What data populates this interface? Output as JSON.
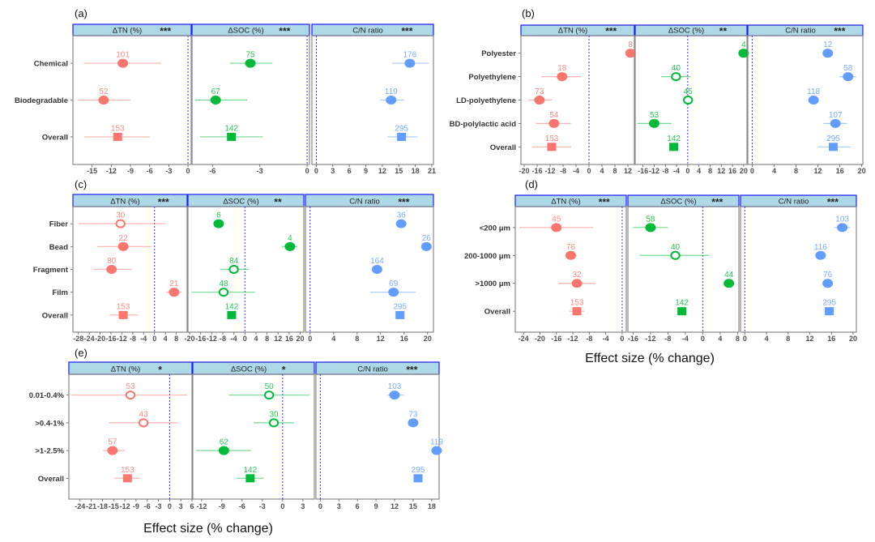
{
  "colors": {
    "tn": "#F8766D",
    "soc": "#00BA38",
    "cn": "#619CFF",
    "strip_fill": "#ADD8E6",
    "strip_border": "#1A1AFF",
    "zero_line": "#3333FF",
    "frame": "#888888",
    "tick_text": "#4D4D4D",
    "ylabel_text": "#333333"
  },
  "shared_xlabels": [
    "Effect size (% change)",
    "Effect size (% change)"
  ],
  "chart_data": [
    {
      "id": "a",
      "type": "forest",
      "panel_label": "(a)",
      "categories": [
        "Chemical",
        "Biodegradable",
        "Overall"
      ],
      "facets": [
        {
          "name": "ΔTN (%)",
          "sig": "***",
          "color_key": "tn",
          "xlim": [
            -18,
            0.5
          ],
          "ticks": [
            -15,
            -12,
            -9,
            -6,
            -3,
            0
          ],
          "points": [
            {
              "est": -10.2,
              "lo": -16.3,
              "hi": -4.2,
              "n": "101",
              "shape": "circle",
              "filled": true
            },
            {
              "est": -13.2,
              "lo": -17.2,
              "hi": -9.0,
              "n": "52",
              "shape": "circle",
              "filled": true
            },
            {
              "est": -11.0,
              "lo": -16.2,
              "hi": -6.0,
              "n": "153",
              "shape": "square",
              "filled": true
            }
          ]
        },
        {
          "name": "ΔSOC (%)",
          "sig": "***",
          "color_key": "soc",
          "xlim": [
            -7.3,
            0.15
          ],
          "ticks": [
            -6,
            -3,
            0
          ],
          "points": [
            {
              "est": -3.6,
              "lo": -4.9,
              "hi": -2.2,
              "n": "75",
              "shape": "circle",
              "filled": true
            },
            {
              "est": -5.8,
              "lo": -7.1,
              "hi": -3.8,
              "n": "67",
              "shape": "circle",
              "filled": true
            },
            {
              "est": -4.8,
              "lo": -6.8,
              "hi": -2.8,
              "n": "142",
              "shape": "square",
              "filled": true
            }
          ]
        },
        {
          "name": "C/N ratio",
          "sig": "***",
          "color_key": "cn",
          "xlim": [
            -0.8,
            21.3
          ],
          "ticks": [
            0,
            3,
            6,
            9,
            12,
            15,
            18,
            21
          ],
          "points": [
            {
              "est": 17.0,
              "lo": 13.8,
              "hi": 20.5,
              "n": "176",
              "shape": "circle",
              "filled": true
            },
            {
              "est": 13.6,
              "lo": 11.6,
              "hi": 15.9,
              "n": "119",
              "shape": "circle",
              "filled": true
            },
            {
              "est": 15.5,
              "lo": 12.9,
              "hi": 18.4,
              "n": "295",
              "shape": "square",
              "filled": true
            }
          ]
        }
      ]
    },
    {
      "id": "b",
      "type": "forest",
      "panel_label": "(b)",
      "categories": [
        "Polyester",
        "Polyethylene",
        "LD-polyethylene",
        "BD-polylactic acid",
        "Overall"
      ],
      "facets": [
        {
          "name": "ΔTN (%)",
          "sig": "***",
          "color_key": "tn",
          "xlim": [
            -21,
            14
          ],
          "ticks": [
            -20,
            -16,
            -12,
            -8,
            -4,
            0,
            4,
            8,
            12
          ],
          "points": [
            {
              "est": 12.8,
              "lo": 12.8,
              "hi": 12.8,
              "n": "8",
              "shape": "circle",
              "filled": true
            },
            {
              "est": -8.3,
              "lo": -14.7,
              "hi": -2.5,
              "n": "18",
              "shape": "circle",
              "filled": true
            },
            {
              "est": -15.3,
              "lo": -18.7,
              "hi": -11.4,
              "n": "73",
              "shape": "circle",
              "filled": true
            },
            {
              "est": -10.8,
              "lo": -16.4,
              "hi": -5.6,
              "n": "54",
              "shape": "circle",
              "filled": true
            },
            {
              "est": -11.5,
              "lo": -17.5,
              "hi": -5.5,
              "n": "153",
              "shape": "square",
              "filled": true
            }
          ]
        },
        {
          "name": "ΔSOC (%)",
          "sig": "**",
          "color_key": "soc",
          "xlim": [
            -18.8,
            21.2
          ],
          "ticks": [
            -16,
            -12,
            -8,
            -4,
            0,
            4,
            8,
            12,
            16,
            20
          ],
          "points": [
            {
              "est": 20.0,
              "lo": 20.0,
              "hi": 20.0,
              "n": "4",
              "shape": "circle",
              "filled": true
            },
            {
              "est": -4.2,
              "lo": -9.5,
              "hi": 1.0,
              "n": "40",
              "shape": "circle",
              "filled": false
            },
            {
              "est": 0.1,
              "lo": 0.1,
              "hi": 0.1,
              "n": "45",
              "shape": "circle",
              "filled": false
            },
            {
              "est": -12.0,
              "lo": -18.0,
              "hi": -5.8,
              "n": "53",
              "shape": "circle",
              "filled": true
            },
            {
              "est": -5.0,
              "lo": -5.0,
              "hi": -5.0,
              "n": "142",
              "shape": "square",
              "filled": true
            }
          ]
        },
        {
          "name": "C/N ratio",
          "sig": "***",
          "color_key": "cn",
          "xlim": [
            -0.8,
            20.2
          ],
          "ticks": [
            0,
            4,
            8,
            12,
            16,
            20
          ],
          "points": [
            {
              "est": 13.8,
              "lo": 13.8,
              "hi": 13.8,
              "n": "12",
              "shape": "circle",
              "filled": true
            },
            {
              "est": 17.5,
              "lo": 15.9,
              "hi": 19.0,
              "n": "58",
              "shape": "circle",
              "filled": true
            },
            {
              "est": 11.2,
              "lo": 11.2,
              "hi": 11.2,
              "n": "118",
              "shape": "circle",
              "filled": true
            },
            {
              "est": 15.2,
              "lo": 13.0,
              "hi": 17.3,
              "n": "107",
              "shape": "circle",
              "filled": true
            },
            {
              "est": 14.8,
              "lo": 12.0,
              "hi": 18.0,
              "n": "295",
              "shape": "square",
              "filled": true
            }
          ]
        }
      ]
    },
    {
      "id": "c",
      "type": "forest",
      "panel_label": "(c)",
      "categories": [
        "Fiber",
        "Bead",
        "Fragment",
        "Film",
        "Overall"
      ],
      "facets": [
        {
          "name": "ΔTN (%)",
          "sig": "***",
          "color_key": "tn",
          "xlim": [
            -30,
            12
          ],
          "ticks": [
            -28,
            -24,
            -20,
            -16,
            -12,
            -8,
            -4,
            0,
            4,
            8
          ],
          "points": [
            {
              "est": -12.5,
              "lo": -28.0,
              "hi": 4.0,
              "n": "30",
              "shape": "circle",
              "filled": false
            },
            {
              "est": -11.5,
              "lo": -21.0,
              "hi": -1.0,
              "n": "22",
              "shape": "circle",
              "filled": true
            },
            {
              "est": -15.8,
              "lo": -22.5,
              "hi": -8.5,
              "n": "80",
              "shape": "circle",
              "filled": true
            },
            {
              "est": 7.2,
              "lo": 4.2,
              "hi": 10.0,
              "n": "21",
              "shape": "circle",
              "filled": true
            },
            {
              "est": -11.5,
              "lo": -16.5,
              "hi": -6.0,
              "n": "153",
              "shape": "square",
              "filled": true
            }
          ]
        },
        {
          "name": "ΔSOC (%)",
          "sig": "**",
          "color_key": "soc",
          "xlim": [
            -20.6,
            21.3
          ],
          "ticks": [
            -20,
            -16,
            -12,
            -8,
            -4,
            0,
            4,
            8,
            12,
            16,
            20
          ],
          "points": [
            {
              "est": -9.5,
              "lo": -9.5,
              "hi": -9.5,
              "n": "6",
              "shape": "circle",
              "filled": true
            },
            {
              "est": 16.3,
              "lo": 13.4,
              "hi": 19.0,
              "n": "4",
              "shape": "circle",
              "filled": true
            },
            {
              "est": -4.0,
              "lo": -9.0,
              "hi": 1.3,
              "n": "84",
              "shape": "circle",
              "filled": false
            },
            {
              "est": -7.7,
              "lo": -19.3,
              "hi": 3.6,
              "n": "48",
              "shape": "circle",
              "filled": false
            },
            {
              "est": -4.8,
              "lo": -4.8,
              "hi": -4.8,
              "n": "142",
              "shape": "square",
              "filled": true
            }
          ]
        },
        {
          "name": "C/N ratio",
          "sig": "***",
          "color_key": "cn",
          "xlim": [
            -0.8,
            21.0
          ],
          "ticks": [
            0,
            4,
            8,
            12,
            16,
            20
          ],
          "points": [
            {
              "est": 15.5,
              "lo": 15.5,
              "hi": 15.5,
              "n": "36",
              "shape": "circle",
              "filled": true
            },
            {
              "est": 19.8,
              "lo": 19.8,
              "hi": 19.8,
              "n": "26",
              "shape": "circle",
              "filled": true
            },
            {
              "est": 11.4,
              "lo": 11.4,
              "hi": 11.4,
              "n": "164",
              "shape": "circle",
              "filled": true
            },
            {
              "est": 14.2,
              "lo": 10.2,
              "hi": 18.0,
              "n": "69",
              "shape": "circle",
              "filled": true
            },
            {
              "est": 15.3,
              "lo": 15.3,
              "hi": 15.3,
              "n": "295",
              "shape": "square",
              "filled": true
            }
          ]
        }
      ]
    },
    {
      "id": "d",
      "type": "forest",
      "panel_label": "(d)",
      "categories": [
        "<200 μm",
        "200-1000 μm",
        ">1000 μm",
        "Overall"
      ],
      "facets": [
        {
          "name": "ΔTN (%)",
          "sig": "***",
          "color_key": "tn",
          "xlim": [
            -26,
            1
          ],
          "ticks": [
            -24,
            -20,
            -16,
            -12,
            -8,
            -4,
            0
          ],
          "points": [
            {
              "est": -16.0,
              "lo": -25.0,
              "hi": -7.0,
              "n": "45",
              "shape": "circle",
              "filled": true
            },
            {
              "est": -12.5,
              "lo": -13.8,
              "hi": -11.0,
              "n": "76",
              "shape": "circle",
              "filled": true
            },
            {
              "est": -11.0,
              "lo": -15.5,
              "hi": -6.5,
              "n": "32",
              "shape": "circle",
              "filled": true
            },
            {
              "est": -11.0,
              "lo": -13.0,
              "hi": -9.2,
              "n": "153",
              "shape": "square",
              "filled": true
            }
          ]
        },
        {
          "name": "ΔSOC (%)",
          "sig": "***",
          "color_key": "soc",
          "xlim": [
            -17.2,
            8.3
          ],
          "ticks": [
            -16,
            -12,
            -8,
            -4,
            0,
            4,
            8
          ],
          "points": [
            {
              "est": -12.0,
              "lo": -16.0,
              "hi": -8.0,
              "n": "58",
              "shape": "circle",
              "filled": true
            },
            {
              "est": -6.3,
              "lo": -14.5,
              "hi": 1.5,
              "n": "40",
              "shape": "circle",
              "filled": false
            },
            {
              "est": 6.0,
              "lo": 6.0,
              "hi": 6.0,
              "n": "44",
              "shape": "circle",
              "filled": true
            },
            {
              "est": -4.8,
              "lo": -4.8,
              "hi": -4.8,
              "n": "142",
              "shape": "square",
              "filled": true
            }
          ]
        },
        {
          "name": "C/N ratio",
          "sig": "***",
          "color_key": "cn",
          "xlim": [
            -0.8,
            20.6
          ],
          "ticks": [
            0,
            4,
            8,
            12,
            16,
            20
          ],
          "points": [
            {
              "est": 18.0,
              "lo": 16.5,
              "hi": 19.5,
              "n": "103",
              "shape": "circle",
              "filled": true
            },
            {
              "est": 14.0,
              "lo": 14.0,
              "hi": 14.0,
              "n": "116",
              "shape": "circle",
              "filled": true
            },
            {
              "est": 15.3,
              "lo": 15.3,
              "hi": 15.3,
              "n": "76",
              "shape": "circle",
              "filled": true
            },
            {
              "est": 15.6,
              "lo": 15.6,
              "hi": 15.6,
              "n": "295",
              "shape": "square",
              "filled": true
            }
          ]
        }
      ]
    },
    {
      "id": "e",
      "type": "forest",
      "panel_label": "(e)",
      "categories": [
        "0.01-0.4%",
        ">0.4-1%",
        ">1-2.5%",
        "Overall"
      ],
      "facets": [
        {
          "name": "ΔTN (%)",
          "sig": "*",
          "color_key": "tn",
          "xlim": [
            -27,
            6
          ],
          "ticks": [
            -24,
            -21,
            -18,
            -15,
            -12,
            -9,
            -6,
            -3,
            0,
            3,
            6
          ],
          "points": [
            {
              "est": -10.5,
              "lo": -26.3,
              "hi": 4.7,
              "n": "53",
              "shape": "circle",
              "filled": false
            },
            {
              "est": -7.0,
              "lo": -16.3,
              "hi": 2.2,
              "n": "43",
              "shape": "circle",
              "filled": false
            },
            {
              "est": -15.3,
              "lo": -17.8,
              "hi": -12.0,
              "n": "57",
              "shape": "circle",
              "filled": true
            },
            {
              "est": -11.3,
              "lo": -14.8,
              "hi": -7.8,
              "n": "153",
              "shape": "square",
              "filled": true
            }
          ]
        },
        {
          "name": "ΔSOC (%)",
          "sig": "*",
          "color_key": "soc",
          "xlim": [
            -13.3,
            4.7
          ],
          "ticks": [
            -12,
            -9,
            -6,
            -3,
            0,
            3
          ],
          "points": [
            {
              "est": -2.0,
              "lo": -8.0,
              "hi": 4.0,
              "n": "50",
              "shape": "circle",
              "filled": false
            },
            {
              "est": -1.3,
              "lo": -4.3,
              "hi": 1.7,
              "n": "30",
              "shape": "circle",
              "filled": false
            },
            {
              "est": -8.7,
              "lo": -12.8,
              "hi": -4.7,
              "n": "62",
              "shape": "circle",
              "filled": true
            },
            {
              "est": -4.8,
              "lo": -6.8,
              "hi": -2.8,
              "n": "142",
              "shape": "square",
              "filled": true
            }
          ]
        },
        {
          "name": "C/N ratio",
          "sig": "***",
          "color_key": "cn",
          "xlim": [
            -0.7,
            19.2
          ],
          "ticks": [
            0,
            3,
            6,
            9,
            12,
            15,
            18
          ],
          "points": [
            {
              "est": 12.0,
              "lo": 10.8,
              "hi": 13.5,
              "n": "103",
              "shape": "circle",
              "filled": true
            },
            {
              "est": 15.0,
              "lo": 15.0,
              "hi": 15.0,
              "n": "73",
              "shape": "circle",
              "filled": true
            },
            {
              "est": 18.8,
              "lo": 18.8,
              "hi": 18.8,
              "n": "119",
              "shape": "circle",
              "filled": true
            },
            {
              "est": 15.8,
              "lo": 15.8,
              "hi": 15.8,
              "n": "295",
              "shape": "square",
              "filled": true
            }
          ]
        }
      ]
    }
  ]
}
